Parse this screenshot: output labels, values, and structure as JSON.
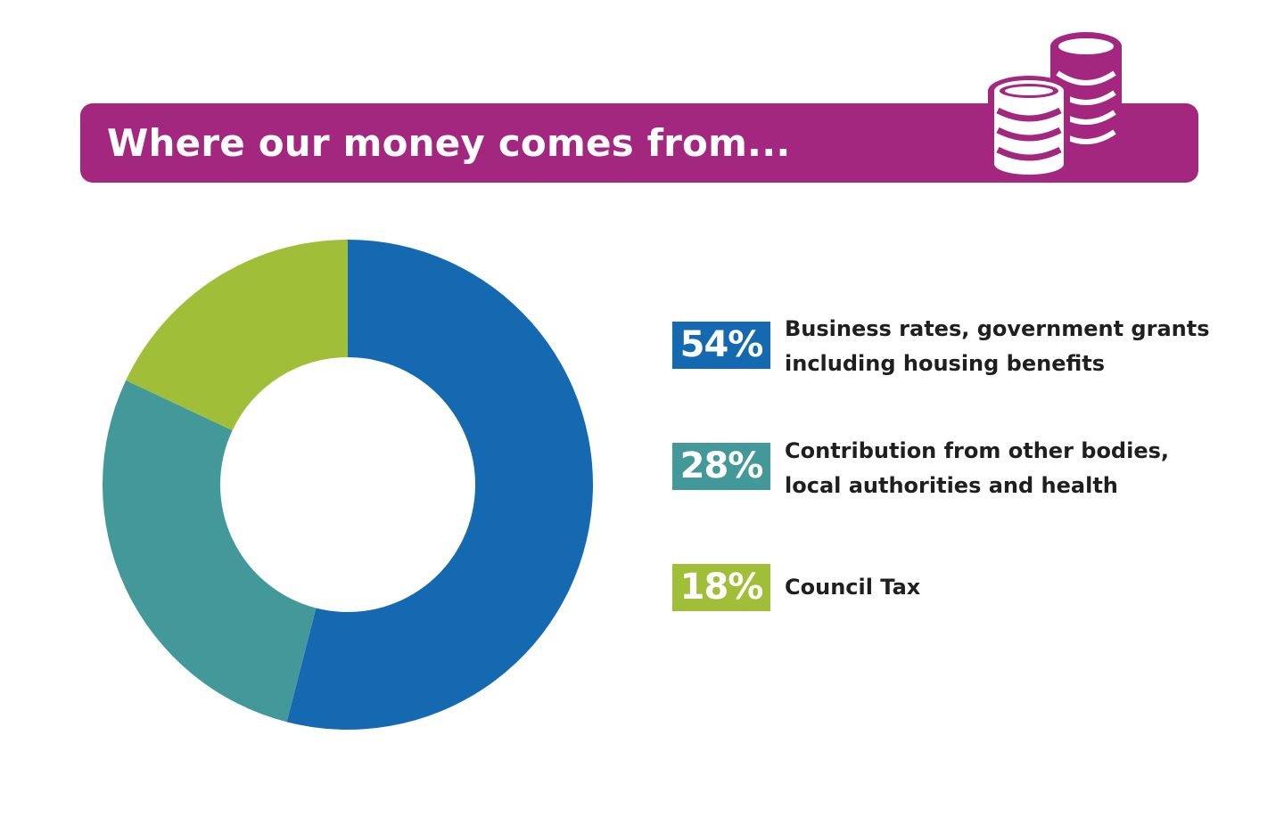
{
  "colors": {
    "header": "#a3277f",
    "background": "#ffffff"
  },
  "header": {
    "title": "Where our money comes from...",
    "icon": "coins-stack-icon"
  },
  "chart_data": {
    "type": "pie",
    "style": "donut",
    "title": "Where our money comes from...",
    "series": [
      {
        "label": "Business rates, government grants including housing benefits",
        "label_lines": [
          "Business rates, government grants",
          "including housing benefits"
        ],
        "value": 54,
        "display": "54%",
        "color": "#1569b0"
      },
      {
        "label": "Contribution from other bodies, local authorities and health",
        "label_lines": [
          "Contribution from other bodies,",
          "local authorities and health"
        ],
        "value": 28,
        "display": "28%",
        "color": "#43999a"
      },
      {
        "label": "Council Tax",
        "label_lines": [
          "Council Tax"
        ],
        "value": 18,
        "display": "18%",
        "color": "#a1be38"
      }
    ],
    "legend_placement": "right"
  }
}
